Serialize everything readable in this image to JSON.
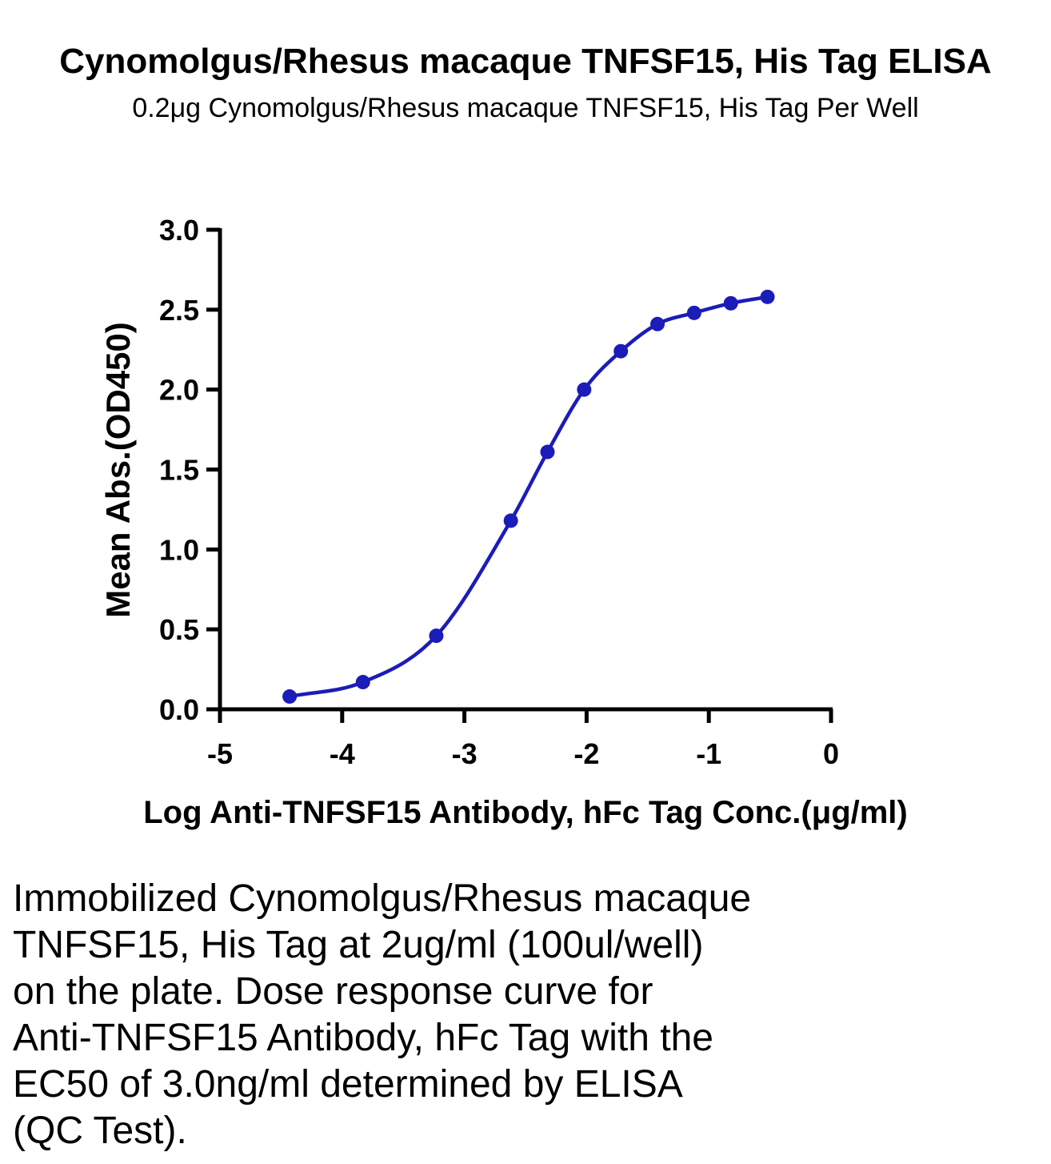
{
  "chart_data": {
    "type": "scatter",
    "title": "Cynomolgus/Rhesus macaque TNFSF15, His Tag ELISA",
    "subtitle": "0.2μg Cynomolgus/Rhesus macaque TNFSF15, His Tag Per Well",
    "xlabel": "Log Anti-TNFSF15 Antibody, hFc Tag Conc.(μg/ml)",
    "ylabel": "Mean Abs.(OD450)",
    "xlim": [
      -5,
      0
    ],
    "ylim": [
      0,
      3.0
    ],
    "x_ticks": [
      "-5",
      "-4",
      "-3",
      "-2",
      "-1",
      "0"
    ],
    "y_ticks": [
      "0.0",
      "0.5",
      "1.0",
      "1.5",
      "2.0",
      "2.5",
      "3.0"
    ],
    "grid": false,
    "fit": "four-parameter logistic curve",
    "color": "#1c1cb8",
    "series": [
      {
        "x": [
          -4.43,
          -3.83,
          -3.23,
          -2.62,
          -2.32,
          -2.02,
          -1.72,
          -1.42,
          -1.12,
          -0.82,
          -0.52
        ],
        "y": [
          0.08,
          0.17,
          0.46,
          1.18,
          1.61,
          2.0,
          2.24,
          2.41,
          2.48,
          2.54,
          2.58
        ]
      }
    ]
  },
  "caption": "Immobilized Cynomolgus/Rhesus macaque\nTNFSF15, His Tag at 2ug/ml (100ul/well)\non the plate. Dose response curve for\nAnti-TNFSF15 Antibody, hFc Tag with the\nEC50 of 3.0ng/ml determined by ELISA\n(QC Test)."
}
